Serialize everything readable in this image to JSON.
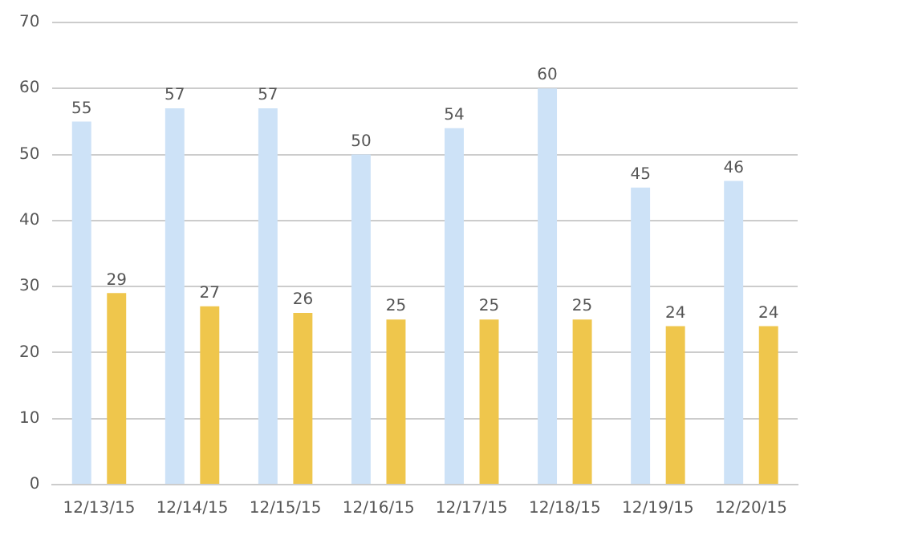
{
  "chart_data": {
    "type": "bar",
    "categories": [
      "12/13/15",
      "12/14/15",
      "12/15/15",
      "12/16/15",
      "12/17/15",
      "12/18/15",
      "12/19/15",
      "12/20/15"
    ],
    "series": [
      {
        "color": "#cde2f7",
        "values": [
          55,
          57,
          57,
          50,
          54,
          60,
          45,
          46
        ]
      },
      {
        "color": "#efc64c",
        "values": [
          29,
          27,
          26,
          25,
          25,
          25,
          24,
          24
        ]
      }
    ],
    "ylim": [
      0,
      70
    ],
    "yticks": [
      0,
      10,
      20,
      30,
      40,
      50,
      60,
      70
    ],
    "grid": "y",
    "data_labels": true
  }
}
